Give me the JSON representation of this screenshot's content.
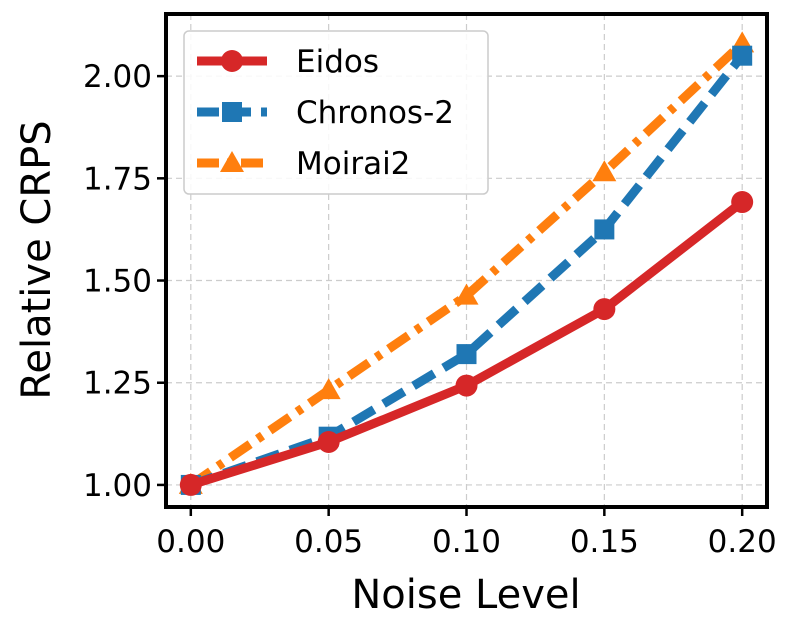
{
  "chart_data": {
    "type": "line",
    "xlabel": "Noise Level",
    "ylabel": "Relative CRPS",
    "x": [
      0.0,
      0.05,
      0.1,
      0.15,
      0.2
    ],
    "x_tick_labels": [
      "0.00",
      "0.05",
      "0.10",
      "0.15",
      "0.20"
    ],
    "xlim": [
      -0.009,
      0.209
    ],
    "ylim": [
      0.946,
      2.152
    ],
    "y_ticks": [
      1.0,
      1.25,
      1.5,
      1.75,
      2.0
    ],
    "y_tick_labels": [
      "1.00",
      "1.25",
      "1.50",
      "1.75",
      "2.00"
    ],
    "grid": true,
    "legend_position": "upper-left",
    "series": [
      {
        "name": "Eidos",
        "values": [
          1.0,
          1.105,
          1.243,
          1.43,
          1.692
        ],
        "color": "#d62728",
        "line_style": "solid",
        "marker": "circle"
      },
      {
        "name": "Chronos-2",
        "values": [
          1.0,
          1.118,
          1.32,
          1.625,
          2.05
        ],
        "color": "#1f77b4",
        "line_style": "dashed",
        "marker": "square"
      },
      {
        "name": "Moirai2",
        "values": [
          1.0,
          1.232,
          1.463,
          1.765,
          2.08
        ],
        "color": "#ff7f0e",
        "line_style": "dashdot",
        "marker": "triangle"
      }
    ]
  }
}
